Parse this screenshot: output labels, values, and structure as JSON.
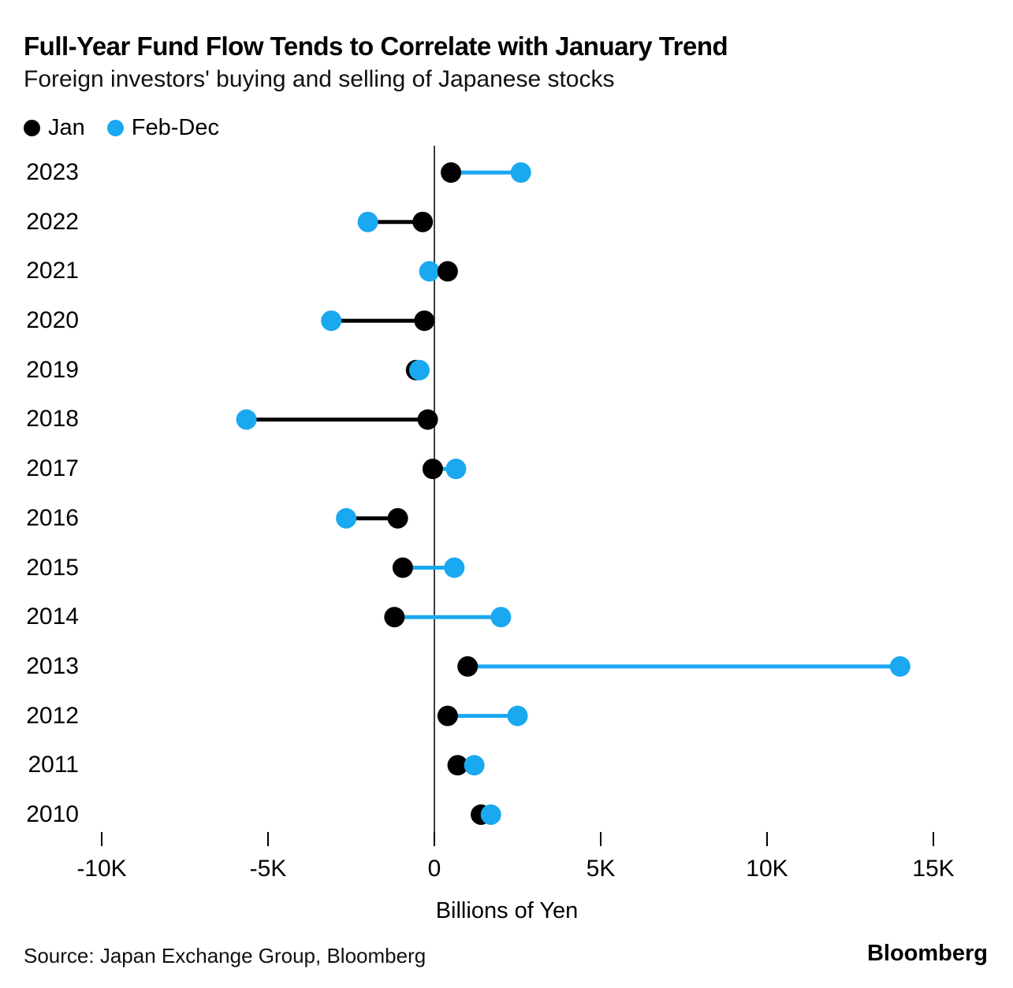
{
  "header": {
    "title": "Full-Year Fund Flow Tends to Correlate with January Trend",
    "subtitle": "Foreign investors' buying and selling of Japanese stocks"
  },
  "legend": {
    "items": [
      {
        "label": "Jan",
        "color": "#000000"
      },
      {
        "label": "Feb-Dec",
        "color": "#1aa8f0"
      }
    ]
  },
  "chart_data": {
    "type": "dumbbell",
    "title": "Full-Year Fund Flow Tends to Correlate with January Trend",
    "subtitle": "Foreign investors' buying and selling of Japanese stocks",
    "categories": [
      "2023",
      "2022",
      "2021",
      "2020",
      "2019",
      "2018",
      "2017",
      "2016",
      "2015",
      "2014",
      "2013",
      "2012",
      "2011",
      "2010"
    ],
    "series": [
      {
        "name": "Jan",
        "color": "#000000",
        "values": [
          500,
          -350,
          400,
          -300,
          -550,
          -200,
          -50,
          -1100,
          -950,
          -1200,
          1000,
          400,
          700,
          1400
        ]
      },
      {
        "name": "Feb-Dec",
        "color": "#1aa8f0",
        "values": [
          2600,
          -2000,
          -150,
          -3100,
          -450,
          -5650,
          650,
          -2650,
          600,
          2000,
          14000,
          2500,
          1200,
          1700
        ]
      }
    ],
    "connector_rule": "line takes the color of the series with the greater value",
    "xlabel": "Billions of Yen",
    "x_ticks": [
      {
        "value": -10000,
        "label": "-10K"
      },
      {
        "value": -5000,
        "label": "-5K"
      },
      {
        "value": 0,
        "label": "0"
      },
      {
        "value": 5000,
        "label": "5K"
      },
      {
        "value": 10000,
        "label": "10K"
      },
      {
        "value": 15000,
        "label": "15K"
      }
    ],
    "xlim": [
      -10700,
      15700
    ],
    "grid": false,
    "zero_axis": true,
    "legend_position": "top-left"
  },
  "footer": {
    "source": "Source: Japan Exchange Group, Bloomberg",
    "brand": "Bloomberg"
  }
}
